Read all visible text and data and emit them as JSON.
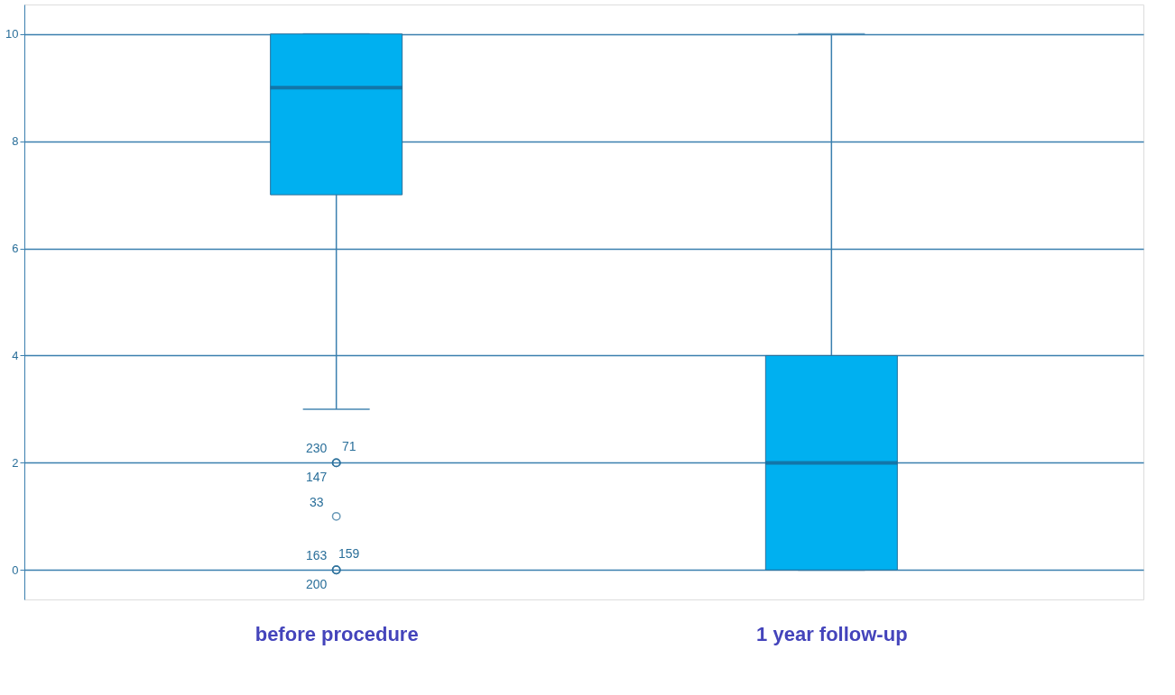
{
  "chart_data": {
    "type": "box",
    "categories": [
      "before procedure",
      "1 year follow-up"
    ],
    "series": [
      {
        "color": "#00b0f0",
        "boxes": [
          {
            "low": 3,
            "q1": 7,
            "median": 9,
            "q3": 10,
            "high": 10,
            "outliers": [
              2,
              2,
              2,
              1,
              0,
              0,
              0
            ]
          },
          {
            "low": 0,
            "q1": 0,
            "median": 2,
            "q3": 4,
            "high": 10
          }
        ]
      }
    ],
    "ylim": [
      -0.55,
      10.55
    ],
    "yticks": [
      0,
      2,
      4,
      6,
      8,
      10
    ],
    "grid": "y",
    "annotations": [
      "230",
      "71",
      "147",
      "33",
      "163",
      "159",
      "200"
    ]
  }
}
